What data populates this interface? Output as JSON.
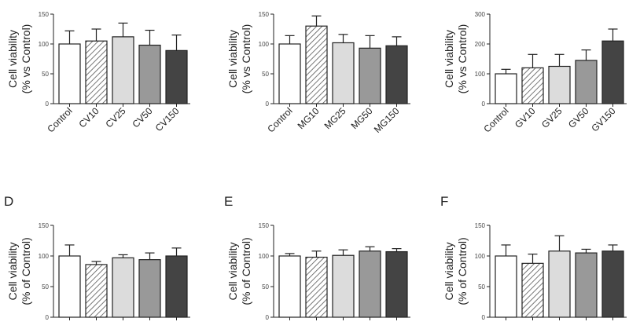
{
  "figure": {
    "panel_letters": [
      "",
      "",
      "",
      "D",
      "E",
      "F"
    ]
  },
  "chart_data": [
    {
      "type": "bar",
      "panel": "",
      "ylabel_line1": "Cell viability",
      "ylabel_line2": "(% vs Control)",
      "ylim": [
        0,
        150
      ],
      "yticks": [
        0,
        50,
        100,
        150
      ],
      "categories": [
        "Control",
        "CV10",
        "CV25",
        "CV50",
        "CV150"
      ],
      "values": [
        100,
        105,
        112,
        98,
        89
      ],
      "errors": [
        22,
        20,
        23,
        25,
        26
      ]
    },
    {
      "type": "bar",
      "panel": "",
      "ylabel_line1": "Cell viability",
      "ylabel_line2": "(% vs Control)",
      "ylim": [
        0,
        150
      ],
      "yticks": [
        0,
        50,
        100,
        150
      ],
      "categories": [
        "Control",
        "MG10",
        "MG25",
        "MG50",
        "MG150"
      ],
      "values": [
        100,
        130,
        102,
        93,
        97
      ],
      "errors": [
        14,
        17,
        14,
        21,
        15
      ]
    },
    {
      "type": "bar",
      "panel": "",
      "ylabel_line1": "Cell viability",
      "ylabel_line2": "(% vs Control)",
      "ylim": [
        0,
        300
      ],
      "yticks": [
        0,
        100,
        200,
        300
      ],
      "categories": [
        "Control",
        "GV10",
        "GV25",
        "GV50",
        "GV150"
      ],
      "values": [
        100,
        120,
        125,
        145,
        210
      ],
      "errors": [
        15,
        45,
        40,
        35,
        40
      ]
    },
    {
      "type": "bar",
      "panel": "D",
      "ylabel_line1": "Cell viability",
      "ylabel_line2": "(% of Control)",
      "ylim": [
        0,
        150
      ],
      "yticks": [
        0,
        50,
        100,
        150
      ],
      "categories": [
        "",
        "",
        "",
        "",
        ""
      ],
      "values": [
        100,
        86,
        97,
        94,
        100
      ],
      "errors": [
        18,
        5,
        5,
        11,
        13
      ]
    },
    {
      "type": "bar",
      "panel": "E",
      "ylabel_line1": "Cell viability",
      "ylabel_line2": "(% of Control)",
      "ylim": [
        0,
        150
      ],
      "yticks": [
        0,
        50,
        100,
        150
      ],
      "categories": [
        "",
        "",
        "",
        "",
        ""
      ],
      "values": [
        100,
        98,
        101,
        108,
        107
      ],
      "errors": [
        4,
        10,
        9,
        7,
        5
      ]
    },
    {
      "type": "bar",
      "panel": "F",
      "ylabel_line1": "Cell viability",
      "ylabel_line2": "(% of Control)",
      "ylim": [
        0,
        150
      ],
      "yticks": [
        0,
        50,
        100,
        150
      ],
      "categories": [
        "",
        "",
        "",
        "",
        ""
      ],
      "values": [
        100,
        88,
        108,
        105,
        108
      ],
      "errors": [
        18,
        15,
        25,
        6,
        10
      ]
    }
  ],
  "bar_styles": [
    "white",
    "hatched",
    "#dcdcdc",
    "#999999",
    "#444444"
  ],
  "colors": {
    "axis": "#222222",
    "bar_outline": "#222222",
    "hatch_line": "#555555"
  }
}
